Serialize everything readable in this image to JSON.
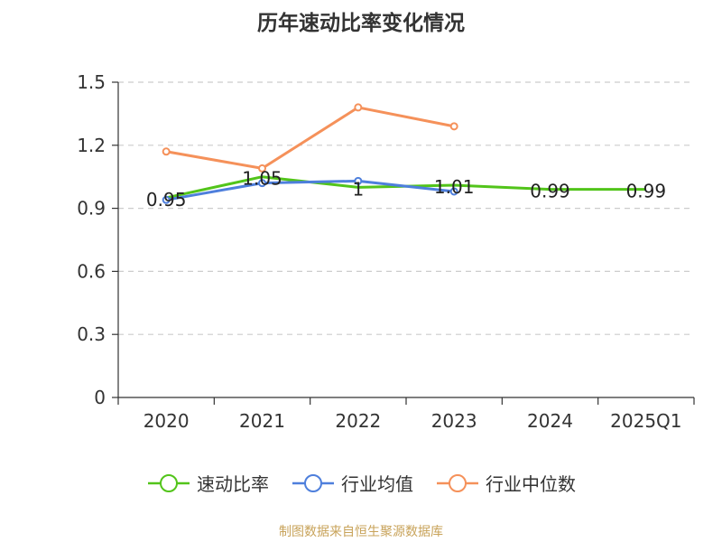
{
  "chart_data": {
    "type": "line",
    "title": "历年速动比率变化情况",
    "categories": [
      "2020",
      "2021",
      "2022",
      "2023",
      "2024",
      "2025Q1"
    ],
    "ylim": [
      0,
      1.5
    ],
    "yticks": [
      "0",
      "0.3",
      "0.6",
      "0.9",
      "1.2",
      "1.5"
    ],
    "ytick_values": [
      0,
      0.3,
      0.6,
      0.9,
      1.2,
      1.5
    ],
    "grid": true,
    "legend_position": "bottom",
    "series": [
      {
        "name": "速动比率",
        "color": "#52c41a",
        "values": [
          0.95,
          1.05,
          1.0,
          1.01,
          0.99,
          0.99
        ],
        "labels": [
          "0.95",
          "1.05",
          "1",
          "1.01",
          "0.99",
          "0.99"
        ]
      },
      {
        "name": "行业均值",
        "color": "#4e7fdc",
        "values": [
          0.94,
          1.02,
          1.03,
          0.98,
          null,
          null
        ]
      },
      {
        "name": "行业中位数",
        "color": "#f5915a",
        "values": [
          1.17,
          1.09,
          1.38,
          1.29,
          null,
          null
        ]
      }
    ]
  },
  "source": "制图数据来自恒生聚源数据库"
}
